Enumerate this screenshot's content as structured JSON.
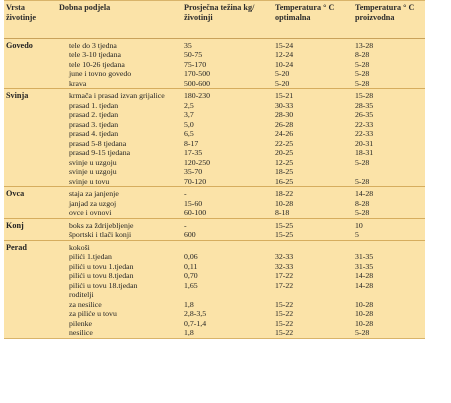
{
  "headers": [
    "Vrsta životinje",
    "Dobna podjela",
    "Prosječna težina kg/životinji",
    "Temperatura ° C optimalna",
    "Temperatura ° C proizvodna"
  ],
  "rows": [
    {
      "g": "Govedo",
      "d": "tele do 3 tjedna",
      "w": "35",
      "o": "15-24",
      "p": "13-28",
      "start": true
    },
    {
      "g": "",
      "d": "tele 3-10 tjedana",
      "w": "50-75",
      "o": "12-24",
      "p": "8-28"
    },
    {
      "g": "",
      "d": "tele 10-26 tjedana",
      "w": "75-170",
      "o": "10-24",
      "p": "5-28"
    },
    {
      "g": "",
      "d": "june i tovno govedo",
      "w": "170-500",
      "o": "5-20",
      "p": "5-28"
    },
    {
      "g": "",
      "d": "krava",
      "w": "500-600",
      "o": "5-20",
      "p": "5-28"
    },
    {
      "g": "Svinja",
      "d": "krmača i prasad izvan grijalice",
      "w": "180-230",
      "o": "15-21",
      "p": "15-28",
      "start": true
    },
    {
      "g": "",
      "d": "prasad 1. tjedan",
      "w": "2,5",
      "o": "30-33",
      "p": "28-35"
    },
    {
      "g": "",
      "d": "prasad 2. tjedan",
      "w": "3,7",
      "o": "28-30",
      "p": "26-35"
    },
    {
      "g": "",
      "d": "prasad 3. tjedan",
      "w": "5,0",
      "o": "26-28",
      "p": "22-33"
    },
    {
      "g": "",
      "d": "prasad 4. tjedan",
      "w": "6,5",
      "o": "24-26",
      "p": "22-33"
    },
    {
      "g": "",
      "d": "prasad 5-8 tjedana",
      "w": "8-17",
      "o": "22-25",
      "p": "20-31"
    },
    {
      "g": "",
      "d": "prasad 9-15 tjedana",
      "w": "17-35",
      "o": "20-25",
      "p": "18-31"
    },
    {
      "g": "",
      "d": "svinje u uzgoju",
      "w": "120-250",
      "o": "12-25",
      "p": "5-28"
    },
    {
      "g": "",
      "d": "svinje u uzgoju",
      "w": "35-70",
      "o": "18-25",
      "p": ""
    },
    {
      "g": "",
      "d": "svinje u tovu",
      "w": "70-120",
      "o": "16-25",
      "p": "5-28"
    },
    {
      "g": "Ovca",
      "d": "staja za janjenje",
      "w": "-",
      "o": "18-22",
      "p": "14-28",
      "start": true
    },
    {
      "g": "",
      "d": "janjad za uzgoj",
      "w": "15-60",
      "o": "10-28",
      "p": "8-28"
    },
    {
      "g": "",
      "d": "ovce i ovnovi",
      "w": "60-100",
      "o": "8-18",
      "p": "5-28"
    },
    {
      "g": "Konj",
      "d": "boks za ždrijebljenje",
      "w": "-",
      "o": "15-25",
      "p": "10",
      "start": true
    },
    {
      "g": "",
      "d": "športski i tlači konji",
      "w": "600",
      "o": "15-25",
      "p": "5"
    },
    {
      "g": "Perad",
      "d": "kokoši",
      "w": "",
      "o": "",
      "p": "",
      "start": true,
      "nodent": true
    },
    {
      "g": "",
      "d": "pilići 1.tjedan",
      "w": "0,06",
      "o": "32-33",
      "p": "31-35"
    },
    {
      "g": "",
      "d": "pilići u tovu 1.tjedan",
      "w": "0,11",
      "o": "32-33",
      "p": "31-35"
    },
    {
      "g": "",
      "d": "pilići u tovu 8.tjedan",
      "w": "0,70",
      "o": "17-22",
      "p": "14-28"
    },
    {
      "g": "",
      "d": "pilići u tovu 18.tjedan",
      "w": "1,65",
      "o": "17-22",
      "p": "14-28"
    },
    {
      "g": "",
      "d": "roditelji",
      "w": "",
      "o": "",
      "p": "",
      "nodent": true
    },
    {
      "g": "",
      "d": "za nesilice",
      "w": "1,8",
      "o": "15-22",
      "p": "10-28"
    },
    {
      "g": "",
      "d": "za piliće u tovu",
      "w": "2,8-3,5",
      "o": "15-22",
      "p": "10-28"
    },
    {
      "g": "",
      "d": "pilenke",
      "w": "0,7-1,4",
      "o": "15-22",
      "p": "10-28"
    },
    {
      "g": "",
      "d": "nesilice",
      "w": "1,8",
      "o": "15-22",
      "p": "5-28"
    }
  ],
  "colors": {
    "background": "#fbe3a8",
    "rule": "#d6ad5e"
  }
}
